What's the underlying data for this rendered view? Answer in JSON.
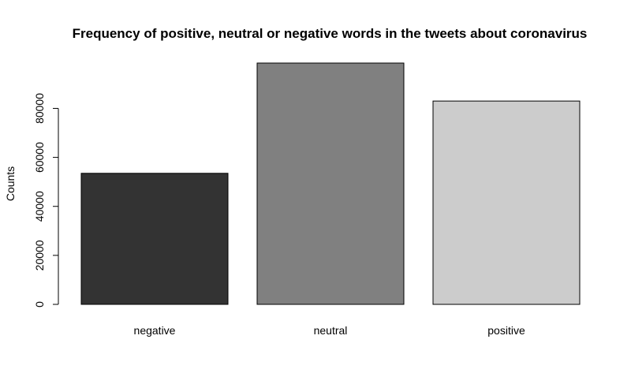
{
  "chart_data": {
    "type": "bar",
    "title": "Frequency of positive, neutral or negative words in the tweets about coronavirus",
    "xlabel": "",
    "ylabel": "Counts",
    "categories": [
      "negative",
      "neutral",
      "positive"
    ],
    "values": [
      53500,
      98500,
      83000
    ],
    "colors": [
      "#333333",
      "#808080",
      "#cccccc"
    ],
    "yticks": [
      0,
      20000,
      40000,
      60000,
      80000
    ],
    "ylim": [
      0,
      103000
    ],
    "grid": false,
    "legend": "none"
  }
}
